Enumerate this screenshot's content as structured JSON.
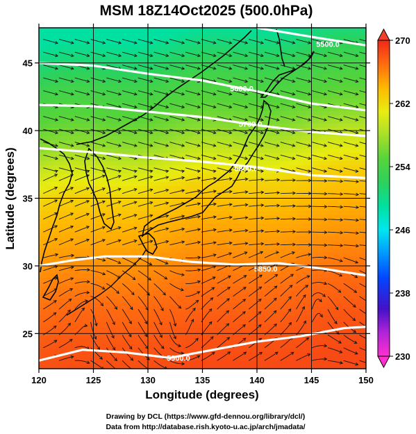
{
  "title": "MSM 18Z14Oct2025 (500.0hPa)",
  "xlabel": "Longitude (degrees)",
  "ylabel": "Latitude  (degrees)",
  "credits": [
    "Drawing by DCL (https://www.gfd-dennou.org/library/dcl/)",
    "Data from http://database.rish.kyoto-u.ac.jp/arch/jmadata/"
  ],
  "map": {
    "lon_range": [
      120,
      150
    ],
    "lat_range": [
      22.4,
      47.6
    ],
    "lon_ticks": [
      120,
      125,
      130,
      135,
      140,
      145,
      150
    ],
    "lat_ticks": [
      25,
      30,
      35,
      40,
      45
    ],
    "lon_tick_labels": [
      "120",
      "125",
      "130",
      "135",
      "140",
      "145",
      "150"
    ],
    "lat_tick_labels": [
      "25",
      "30",
      "35",
      "40",
      "45"
    ],
    "grid_lons": [
      125,
      130,
      135,
      140,
      145
    ],
    "grid_lats": [
      25,
      30,
      35,
      40,
      45
    ],
    "shaded_variable": "temperature (K)",
    "contour_variable": "geopotential height (m)",
    "vector_field": "wind streamlines"
  },
  "colorbar": {
    "min": 230,
    "max": 270,
    "ticks": [
      230,
      238,
      246,
      254,
      262,
      270
    ],
    "tick_labels": [
      "230",
      "238",
      "246",
      "254",
      "262",
      "270"
    ],
    "stops": [
      {
        "v": 230,
        "c": "#ff2fd0"
      },
      {
        "v": 233,
        "c": "#b024d8"
      },
      {
        "v": 236,
        "c": "#4410c8"
      },
      {
        "v": 240,
        "c": "#0048ff"
      },
      {
        "v": 243,
        "c": "#0098ff"
      },
      {
        "v": 246,
        "c": "#00e6f0"
      },
      {
        "v": 249,
        "c": "#00e0a0"
      },
      {
        "v": 252,
        "c": "#2cd25c"
      },
      {
        "v": 255,
        "c": "#56d43a"
      },
      {
        "v": 258,
        "c": "#a6e02a"
      },
      {
        "v": 261,
        "c": "#e8ec10"
      },
      {
        "v": 264,
        "c": "#ffb800"
      },
      {
        "v": 267,
        "c": "#ff6c10"
      },
      {
        "v": 270,
        "c": "#f02818"
      }
    ]
  },
  "chart_data": {
    "type": "heatmap",
    "title": "MSM 18Z14Oct2025 (500.0hPa)",
    "xlabel": "Longitude (degrees)",
    "ylabel": "Latitude  (degrees)",
    "xlim": [
      120,
      150
    ],
    "ylim": [
      22.4,
      47.6
    ],
    "color_range": [
      230,
      270
    ],
    "temperature_by_latitude": [
      {
        "lat": 47.6,
        "temp": 249.0
      },
      {
        "lat": 46.0,
        "temp": 251.0
      },
      {
        "lat": 44.0,
        "temp": 253.5
      },
      {
        "lat": 42.0,
        "temp": 255.0
      },
      {
        "lat": 40.0,
        "temp": 257.0
      },
      {
        "lat": 38.0,
        "temp": 260.0
      },
      {
        "lat": 36.0,
        "temp": 262.5
      },
      {
        "lat": 34.0,
        "temp": 264.0
      },
      {
        "lat": 31.0,
        "temp": 265.5
      },
      {
        "lat": 28.0,
        "temp": 267.0
      },
      {
        "lat": 25.0,
        "temp": 268.0
      },
      {
        "lat": 22.4,
        "temp": 268.5
      }
    ],
    "height_contours": [
      {
        "label": "5600.0",
        "points": [
          [
            120,
            45.0
          ],
          [
            125,
            44.8
          ],
          [
            130,
            44.2
          ],
          [
            135,
            43.7
          ],
          [
            140,
            42.9
          ],
          [
            145,
            42.0
          ],
          [
            150,
            41.5
          ]
        ]
      },
      {
        "label": "5700.0",
        "points": [
          [
            120,
            41.9
          ],
          [
            125,
            41.8
          ],
          [
            130,
            41.4
          ],
          [
            135,
            41.0
          ],
          [
            140,
            40.4
          ],
          [
            145,
            39.9
          ],
          [
            150,
            39.6
          ]
        ]
      },
      {
        "label": "5800.0",
        "points": [
          [
            120,
            38.7
          ],
          [
            125,
            38.4
          ],
          [
            130,
            38.0
          ],
          [
            135,
            37.7
          ],
          [
            140,
            37.3
          ],
          [
            145,
            36.7
          ],
          [
            150,
            36.5
          ]
        ]
      },
      {
        "label": "5850.0",
        "points": [
          [
            120,
            30.0
          ],
          [
            123,
            30.4
          ],
          [
            126,
            30.7
          ],
          [
            130,
            30.7
          ],
          [
            134,
            30.3
          ],
          [
            138,
            30.1
          ],
          [
            142,
            30.2
          ],
          [
            146,
            29.8
          ],
          [
            150,
            29.3
          ]
        ]
      },
      {
        "label": "5900.0",
        "points": [
          [
            120,
            23.0
          ],
          [
            124,
            23.8
          ],
          [
            128,
            23.6
          ],
          [
            132,
            23.2
          ],
          [
            136,
            23.8
          ],
          [
            140,
            24.4
          ],
          [
            144,
            24.8
          ],
          [
            148,
            25.4
          ],
          [
            150,
            25.5
          ]
        ]
      },
      {
        "label": "5500.0",
        "points": [
          [
            140,
            47.6
          ],
          [
            143,
            47.2
          ],
          [
            146,
            46.8
          ],
          [
            150,
            46.3
          ]
        ]
      }
    ],
    "height_contour_labels": [
      {
        "text": "5600.0",
        "lon": 138.6,
        "lat": 43.1
      },
      {
        "text": "5700.0",
        "lon": 139.4,
        "lat": 40.5
      },
      {
        "text": "5800.0",
        "lon": 139.0,
        "lat": 37.2
      },
      {
        "text": "5850.0",
        "lon": 140.8,
        "lat": 29.8
      },
      {
        "text": "5900.0",
        "lon": 132.8,
        "lat": 23.2
      },
      {
        "text": "5500.0",
        "lon": 146.5,
        "lat": 46.4
      }
    ]
  }
}
